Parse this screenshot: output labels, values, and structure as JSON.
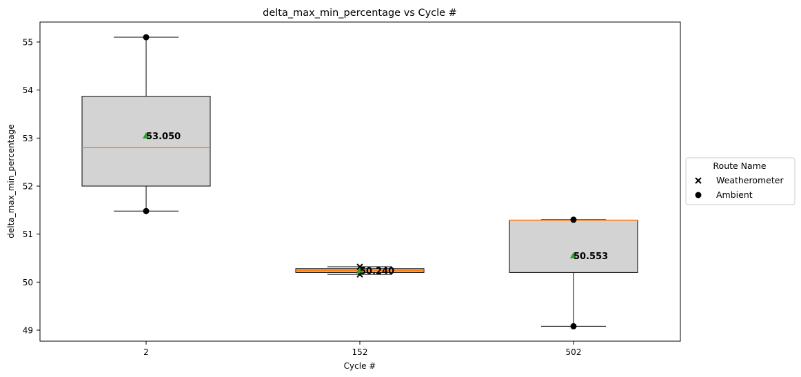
{
  "chart_data": {
    "type": "box",
    "title": "delta_max_min_percentage vs Cycle #",
    "xlabel": "Cycle #",
    "ylabel": "delta_max_min_percentage",
    "categories": [
      "2",
      "152",
      "502"
    ],
    "ylim": [
      48.77,
      55.52
    ],
    "yticks": [
      49,
      50,
      51,
      52,
      53,
      54,
      55
    ],
    "grid": false,
    "legend": {
      "title": "Route Name",
      "placement": "outside-right",
      "entries": [
        {
          "label": "Weatherometer",
          "marker": "x"
        },
        {
          "label": "Ambient",
          "marker": "circle"
        }
      ]
    },
    "boxes": [
      {
        "category": "2",
        "q1": 52.0,
        "median": 52.8,
        "q3": 53.87,
        "whisker_low": 51.48,
        "whisker_high": 55.1,
        "mean": 53.05,
        "mean_label": "53.050",
        "fill": "#d3d3d3"
      },
      {
        "category": "152",
        "q1": 50.2,
        "median": 50.24,
        "q3": 50.28,
        "whisker_low": 50.16,
        "whisker_high": 50.32,
        "mean": 50.24,
        "mean_label": "50.240",
        "fill": "#e8b48e"
      },
      {
        "category": "502",
        "q1": 50.2,
        "median": 51.29,
        "q3": 51.29,
        "whisker_low": 49.08,
        "whisker_high": 51.3,
        "mean": 50.553,
        "mean_label": "50.553",
        "fill": "#d3d3d3"
      }
    ],
    "points": [
      {
        "category": "2",
        "value": 55.1,
        "route": "Ambient"
      },
      {
        "category": "2",
        "value": 51.48,
        "route": "Ambient"
      },
      {
        "category": "152",
        "value": 50.32,
        "route": "Weatherometer"
      },
      {
        "category": "152",
        "value": 50.16,
        "route": "Weatherometer"
      },
      {
        "category": "502",
        "value": 51.3,
        "route": "Ambient"
      },
      {
        "category": "502",
        "value": 49.08,
        "route": "Ambient"
      }
    ],
    "colors": {
      "median": "#ff7f0e",
      "mean_marker": "#2ca02c",
      "box_edge": "#000000"
    }
  }
}
